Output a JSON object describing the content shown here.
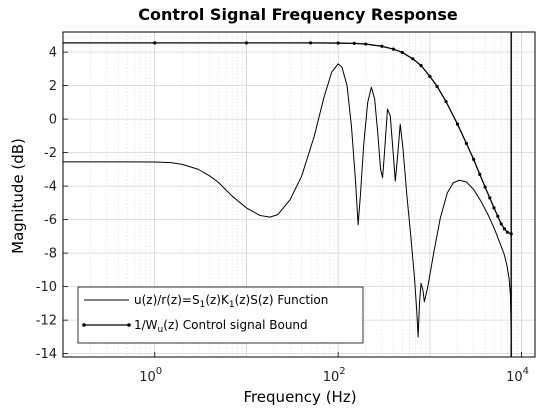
{
  "chart_data": {
    "type": "line",
    "title": "Control Signal Frequency Response",
    "xlabel": "Frequency  (Hz)",
    "ylabel": "Magnitude (dB)",
    "xscale": "log",
    "xlim": [
      0.1,
      14000
    ],
    "ylim": [
      -14.2,
      5.2
    ],
    "grid": true,
    "legend_position": "bottom-left",
    "x_ticks": [
      {
        "value": 1,
        "base": "10",
        "exp": "0"
      },
      {
        "value": 100,
        "base": "10",
        "exp": "2"
      },
      {
        "value": 10000,
        "base": "10",
        "exp": "4"
      }
    ],
    "y_ticks": [
      4,
      2,
      0,
      -2,
      -4,
      -6,
      -8,
      -10,
      -12,
      -14
    ],
    "vertical_line_x": 7700,
    "series": [
      {
        "label_parts": [
          "u(z)/r(z)=S",
          "1",
          "(z)K",
          "1",
          "(z)S(z) Function"
        ],
        "color": "#000000",
        "marker": "none",
        "points": [
          [
            0.1,
            -2.55
          ],
          [
            0.5,
            -2.55
          ],
          [
            1,
            -2.56
          ],
          [
            1.5,
            -2.6
          ],
          [
            2,
            -2.7
          ],
          [
            3,
            -3.0
          ],
          [
            4,
            -3.4
          ],
          [
            5,
            -3.8
          ],
          [
            7,
            -4.6
          ],
          [
            10,
            -5.3
          ],
          [
            14,
            -5.75
          ],
          [
            18,
            -5.85
          ],
          [
            22,
            -5.7
          ],
          [
            30,
            -4.8
          ],
          [
            40,
            -3.4
          ],
          [
            55,
            -1.0
          ],
          [
            70,
            1.3
          ],
          [
            85,
            2.8
          ],
          [
            100,
            3.3
          ],
          [
            110,
            3.1
          ],
          [
            125,
            2.0
          ],
          [
            140,
            -0.5
          ],
          [
            155,
            -3.8
          ],
          [
            165,
            -6.3
          ],
          [
            175,
            -4.5
          ],
          [
            190,
            -1.5
          ],
          [
            210,
            1.0
          ],
          [
            230,
            1.9
          ],
          [
            250,
            1.2
          ],
          [
            270,
            -0.8
          ],
          [
            290,
            -3.0
          ],
          [
            305,
            -3.5
          ],
          [
            320,
            -2.0
          ],
          [
            345,
            0.6
          ],
          [
            370,
            0.2
          ],
          [
            395,
            -1.8
          ],
          [
            420,
            -3.7
          ],
          [
            445,
            -2.2
          ],
          [
            475,
            -0.3
          ],
          [
            510,
            -1.8
          ],
          [
            560,
            -4.5
          ],
          [
            620,
            -7.0
          ],
          [
            680,
            -9.5
          ],
          [
            720,
            -11.5
          ],
          [
            745,
            -13.0
          ],
          [
            770,
            -11.0
          ],
          [
            800,
            -9.8
          ],
          [
            840,
            -10.2
          ],
          [
            870,
            -10.9
          ],
          [
            950,
            -10.0
          ],
          [
            1100,
            -8.0
          ],
          [
            1300,
            -5.9
          ],
          [
            1550,
            -4.4
          ],
          [
            1800,
            -3.8
          ],
          [
            2100,
            -3.65
          ],
          [
            2500,
            -3.75
          ],
          [
            3000,
            -4.2
          ],
          [
            3600,
            -4.9
          ],
          [
            4300,
            -5.7
          ],
          [
            5100,
            -6.6
          ],
          [
            5800,
            -7.4
          ],
          [
            6400,
            -8.0
          ],
          [
            6900,
            -8.7
          ],
          [
            7300,
            -9.5
          ],
          [
            7550,
            -10.5
          ],
          [
            7650,
            -12.0
          ],
          [
            7700,
            -14.2
          ]
        ]
      },
      {
        "label_parts": [
          "1/W",
          "u",
          "(z) Control signal Bound"
        ],
        "color": "#000000",
        "marker": "dot",
        "points": [
          [
            0.1,
            4.55
          ],
          [
            1,
            4.55
          ],
          [
            10,
            4.55
          ],
          [
            50,
            4.55
          ],
          [
            100,
            4.54
          ],
          [
            150,
            4.52
          ],
          [
            200,
            4.48
          ],
          [
            300,
            4.35
          ],
          [
            400,
            4.18
          ],
          [
            500,
            3.98
          ],
          [
            650,
            3.6
          ],
          [
            800,
            3.2
          ],
          [
            1000,
            2.55
          ],
          [
            1200,
            1.95
          ],
          [
            1500,
            1.05
          ],
          [
            2000,
            -0.3
          ],
          [
            2500,
            -1.45
          ],
          [
            3000,
            -2.4
          ],
          [
            3500,
            -3.3
          ],
          [
            4000,
            -4.05
          ],
          [
            4500,
            -4.7
          ],
          [
            5000,
            -5.3
          ],
          [
            5500,
            -5.8
          ],
          [
            6000,
            -6.25
          ],
          [
            6500,
            -6.55
          ],
          [
            7000,
            -6.75
          ],
          [
            7700,
            -6.85
          ]
        ]
      }
    ]
  }
}
